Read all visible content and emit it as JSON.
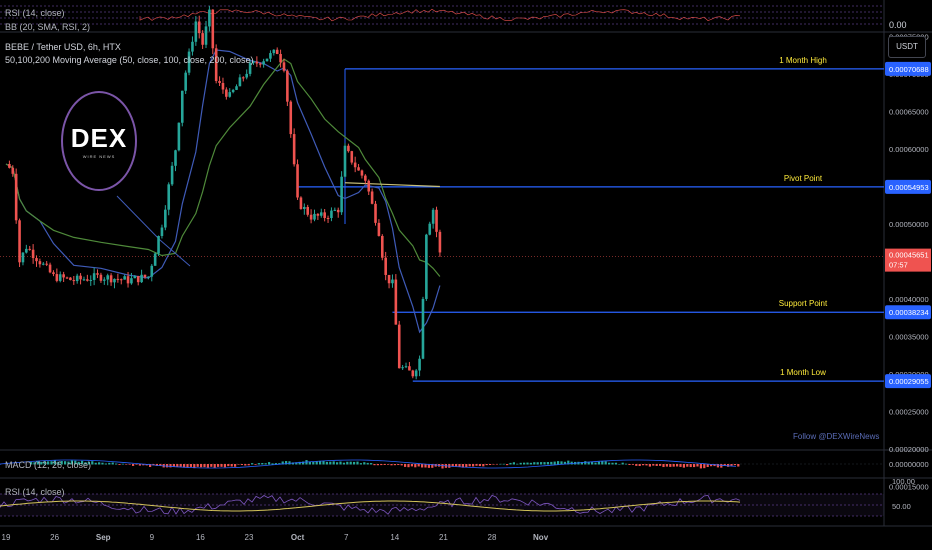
{
  "header": {
    "title": "BEBE / Tether USD, 6h, HTX",
    "ma_label": "50,100,200 Moving Average (50, close, 100, close, 200, close)"
  },
  "top_pane": {
    "rsi_label": "RSI (14, close)",
    "bb_label": "BB (20, SMA, RSI, 2)",
    "value": "0.00"
  },
  "currency_button": "USDT",
  "logo": {
    "main": "DEX",
    "sub": "WIRE NEWS"
  },
  "follow_text": "Follow @DEXWireNews",
  "colors": {
    "up": "#26a69a",
    "down": "#ef5350",
    "level_line": "#2962ff",
    "annotation": "#ffeb3b",
    "ma50": "#3f5bb8",
    "ma100": "#4f8a3a",
    "ma200": "#c8c07a",
    "rsi": "#7e57c2"
  },
  "chart_data": {
    "type": "candlestick",
    "symbol": "BEBE / Tether USD",
    "interval": "6h",
    "exchange": "HTX",
    "current_price": "0.00045651",
    "countdown": "07:57",
    "y_ticks": [
      "0.00075000",
      "0.00070000",
      "0.00065000",
      "0.00060000",
      "0.00055000",
      "0.00050000",
      "0.00045000",
      "0.00040000",
      "0.00035000",
      "0.00030000",
      "0.00025000",
      "0.00020000",
      "0.00015000"
    ],
    "x_ticks": [
      "19",
      "26",
      "Sep",
      "9",
      "16",
      "23",
      "Oct",
      "7",
      "14",
      "21",
      "28",
      "Nov"
    ],
    "levels": [
      {
        "name": "1 Month High",
        "value": "0.00070688"
      },
      {
        "name": "Pivot Point",
        "value": "0.00054953"
      },
      {
        "name": "Support Point",
        "value": "0.00038234"
      },
      {
        "name": "1 Month Low",
        "value": "0.00029055"
      }
    ],
    "moving_averages": [
      "50",
      "100",
      "200"
    ],
    "close_path": [
      [
        "Aug 19",
        0.00058
      ],
      [
        "Aug 20",
        0.00057
      ],
      [
        "Aug 21",
        0.00045
      ],
      [
        "Aug 22",
        0.00047
      ],
      [
        "Aug 24",
        0.00045
      ],
      [
        "Aug 26",
        0.00043
      ],
      [
        "Aug 29",
        0.000425
      ],
      [
        "Sep 2",
        0.00043
      ],
      [
        "Sep 6",
        0.000425
      ],
      [
        "Sep 9",
        0.00043
      ],
      [
        "Sep 11",
        0.0005
      ],
      [
        "Sep 13",
        0.0006
      ],
      [
        "Sep 14",
        0.00068
      ],
      [
        "Sep 16",
        0.00077
      ],
      [
        "Sep 17",
        0.00074
      ],
      [
        "Sep 18",
        0.00078
      ],
      [
        "Sep 19",
        0.00069
      ],
      [
        "Sep 21",
        0.00067
      ],
      [
        "Sep 24",
        0.00071
      ],
      [
        "Sep 26",
        0.00072
      ],
      [
        "Sep 28",
        0.00073
      ],
      [
        "Sep 29",
        0.00071
      ],
      [
        "Sep 30",
        0.00062
      ],
      [
        "Oct 1",
        0.00053
      ],
      [
        "Oct 3",
        0.00051
      ],
      [
        "Oct 5",
        0.00051
      ],
      [
        "Oct 7",
        0.00052
      ],
      [
        "Oct 8",
        0.0006
      ],
      [
        "Oct 10",
        0.00057
      ],
      [
        "Oct 11",
        0.00056
      ],
      [
        "Oct 13",
        0.00049
      ],
      [
        "Oct 14",
        0.00043
      ],
      [
        "Oct 15",
        0.00042
      ],
      [
        "Oct 16",
        0.00031
      ],
      [
        "Oct 18",
        0.0003
      ],
      [
        "Oct 19",
        0.00032
      ],
      [
        "Oct 20",
        0.00049
      ],
      [
        "Oct 21",
        0.00052
      ],
      [
        "Oct 22",
        0.00046
      ]
    ],
    "macd": {
      "label": "MACD (12, 26, close)",
      "value": "0.00000000"
    },
    "rsi": {
      "label": "RSI (14, close)",
      "ticks": [
        "100.00",
        "50.00"
      ]
    }
  }
}
